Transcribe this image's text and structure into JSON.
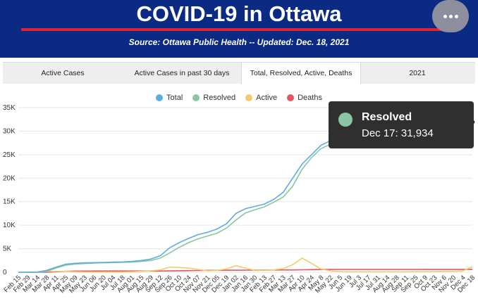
{
  "header": {
    "title": "COVID-19 in Ottawa",
    "source": "Source:  Ottawa Public Health -- Updated:  Dec. 18, 2021",
    "more_icon": "more-horizontal-icon"
  },
  "tabs": [
    {
      "label": "Active Cases",
      "active": false
    },
    {
      "label": "Active Cases in past 30 days",
      "active": false
    },
    {
      "label": "Total, Resolved, Active, Deaths",
      "active": true
    },
    {
      "label": "2021",
      "active": false
    }
  ],
  "colors": {
    "header_bg": "#0a2a84",
    "accent_red": "#e0232e",
    "total": "#5aafe0",
    "resolved": "#8cc5a3",
    "active": "#f0cc6a",
    "deaths": "#e35560"
  },
  "tooltip": {
    "series": "Resolved",
    "label": "Dec 17: 31,934"
  },
  "chart_data": {
    "type": "line",
    "ylim": [
      0,
      35000
    ],
    "yticks": [
      0,
      5000,
      10000,
      15000,
      20000,
      25000,
      30000,
      35000
    ],
    "ytick_labels": [
      "0",
      "5K",
      "10K",
      "15K",
      "20K",
      "25K",
      "30K",
      "35K"
    ],
    "grid": true,
    "legend_position": "top-center",
    "x": [
      "Feb 15",
      "Feb 29",
      "Mar 14",
      "Mar 28",
      "Apr 11",
      "Apr 25",
      "May 09",
      "May 23",
      "Jun 06",
      "Jun 20",
      "Jul 04",
      "Jul 18",
      "Aug 01",
      "Aug 15",
      "Aug 29",
      "Sep 12",
      "Sep 26",
      "Oct 10",
      "Oct 24",
      "Nov 07",
      "Nov 21",
      "Dec 05",
      "Dec 19",
      "Jan 02",
      "Jan 16",
      "Jan 30",
      "Feb 13",
      "Feb 27",
      "Mar 13",
      "Mar 27",
      "Apr 10",
      "Apr 24",
      "May 8",
      "May 22",
      "Jun 5",
      "Jun 19",
      "Jul 3",
      "Jul 17",
      "Jul 31",
      "Aug 14",
      "Aug 28",
      "Sep 11",
      "Sep 25",
      "Oct 9",
      "Oct 23",
      "Nov 6",
      "Nov 20",
      "Dec 4",
      "Dec 18"
    ],
    "series": [
      {
        "name": "Total",
        "color": "#5aafe0",
        "values": [
          0,
          0,
          50,
          400,
          1100,
          1700,
          1900,
          2000,
          2050,
          2100,
          2150,
          2200,
          2300,
          2500,
          2800,
          3500,
          5200,
          6300,
          7200,
          8000,
          8500,
          9200,
          10300,
          12500,
          13500,
          14000,
          14500,
          15500,
          17000,
          20000,
          23000,
          25000,
          27000,
          28000,
          28500,
          29000,
          29100,
          29200,
          29300,
          29350,
          29400,
          29500,
          29700,
          29900,
          30300,
          30700,
          31200,
          31800,
          34000
        ]
      },
      {
        "name": "Resolved",
        "color": "#8cc5a3",
        "values": [
          0,
          0,
          0,
          200,
          900,
          1500,
          1750,
          1850,
          1950,
          2000,
          2050,
          2100,
          2150,
          2300,
          2500,
          3000,
          4100,
          5300,
          6300,
          7100,
          7700,
          8300,
          9400,
          11100,
          12600,
          13300,
          13900,
          14900,
          16000,
          18300,
          21900,
          24400,
          26300,
          27200,
          27800,
          28200,
          28500,
          28700,
          28800,
          28900,
          29000,
          29100,
          29300,
          29500,
          29800,
          30200,
          30800,
          31400,
          31934
        ]
      },
      {
        "name": "Active",
        "color": "#f0cc6a",
        "values": [
          0,
          0,
          50,
          200,
          200,
          200,
          100,
          50,
          50,
          50,
          50,
          50,
          100,
          200,
          300,
          500,
          1100,
          1000,
          900,
          600,
          300,
          400,
          700,
          1400,
          900,
          400,
          400,
          500,
          800,
          1600,
          3000,
          1900,
          700,
          300,
          150,
          100,
          100,
          100,
          100,
          100,
          100,
          100,
          150,
          150,
          150,
          200,
          200,
          300,
          1200
        ]
      },
      {
        "name": "Deaths",
        "color": "#e35560",
        "values": [
          0,
          0,
          0,
          20,
          100,
          200,
          250,
          260,
          265,
          266,
          266,
          267,
          267,
          268,
          268,
          270,
          290,
          320,
          350,
          380,
          400,
          420,
          430,
          440,
          450,
          460,
          470,
          480,
          490,
          500,
          520,
          560,
          580,
          590,
          595,
          598,
          600,
          600,
          601,
          601,
          602,
          603,
          604,
          606,
          608,
          610,
          612,
          614,
          617
        ]
      }
    ]
  }
}
